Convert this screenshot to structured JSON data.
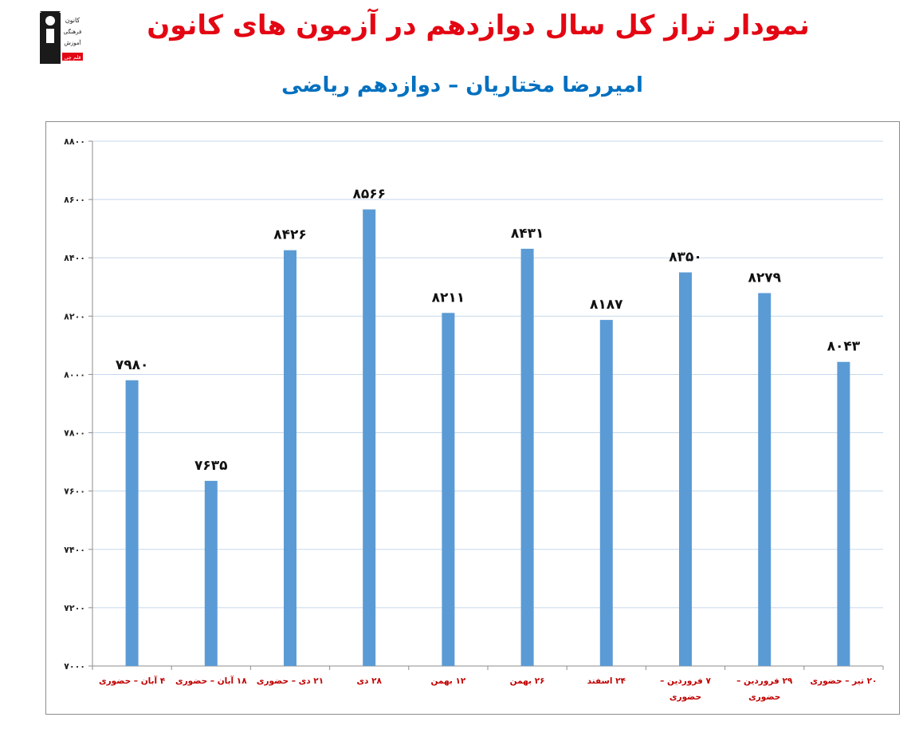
{
  "page": {
    "title": "نمودار تراز کل سال دوازدهم در آزمون های کانون",
    "subtitle": "امیررضا مختاریان – دوازدهم ریاضی",
    "logo_text": [
      "کانون",
      "فرهنگی",
      "آموزش",
      "قلم چی"
    ]
  },
  "colors": {
    "title": "#e30613",
    "subtitle": "#0070c0",
    "bar": "#5b9bd5",
    "grid": "#c5d8ec",
    "xlabel": "#c00000"
  },
  "chart_data": {
    "type": "bar",
    "categories": [
      "۴ آبان – حضوری",
      "۱۸ آبان – حضوری",
      "۲۱ دی – حضوری",
      "۲۸ دی",
      "۱۲ بهمن",
      "۲۶ بهمن",
      "۲۴ اسفند",
      "۷ فروردین – حضوری",
      "۲۹ فروردین – حضوری",
      "۲۰ تیر – حضوری"
    ],
    "values": [
      7980,
      7635,
      8426,
      8566,
      8211,
      8431,
      8187,
      8350,
      8279,
      8043
    ],
    "value_labels": [
      "۷۹۸۰",
      "۷۶۳۵",
      "۸۴۲۶",
      "۸۵۶۶",
      "۸۲۱۱",
      "۸۴۳۱",
      "۸۱۸۷",
      "۸۳۵۰",
      "۸۲۷۹",
      "۸۰۴۳"
    ],
    "y_ticks": [
      7000,
      7200,
      7400,
      7600,
      7800,
      8000,
      8200,
      8400,
      8600,
      8800
    ],
    "y_tick_labels": [
      "۷۰۰۰",
      "۷۲۰۰",
      "۷۴۰۰",
      "۷۶۰۰",
      "۷۸۰۰",
      "۸۰۰۰",
      "۸۲۰۰",
      "۸۴۰۰",
      "۸۶۰۰",
      "۸۸۰۰"
    ],
    "ylim": [
      7000,
      8800
    ],
    "grid": true,
    "legend": "none",
    "title": "",
    "xlabel": "",
    "ylabel": ""
  }
}
